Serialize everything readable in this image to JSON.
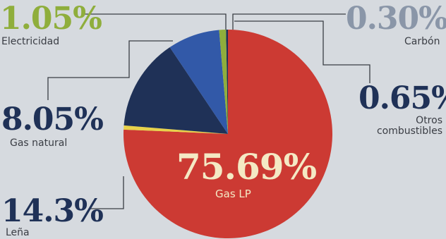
{
  "chart_data": {
    "type": "pie",
    "slices": [
      {
        "key": "gas_lp",
        "label": "Gas LP",
        "value": 75.69,
        "display": "75.69%",
        "color": "#cc3a33"
      },
      {
        "key": "lena",
        "label": "Leña",
        "value": 14.3,
        "display": "14.3%",
        "color": "#1f3157"
      },
      {
        "key": "gas_natural",
        "label": "Gas natural",
        "value": 8.05,
        "display": "8.05%",
        "color": "#3259a8"
      },
      {
        "key": "electricidad",
        "label": "Electricidad",
        "value": 1.05,
        "display": "1.05%",
        "color": "#8fae3c"
      },
      {
        "key": "carbon",
        "label": "Carbón",
        "value": 0.3,
        "display": "0.30%",
        "color": "#1f3157"
      },
      {
        "key": "otros",
        "label": "Otros combustibles",
        "value": 0.65,
        "display": "0.65%",
        "color": "#e8d24a"
      }
    ],
    "colors": {
      "value_text": "#1f3157",
      "electricidad_text": "#8fae3c",
      "carbon_text": "#8a96a8",
      "gas_lp_text": "#f4e9c4",
      "leader": "#3a3d44"
    }
  }
}
